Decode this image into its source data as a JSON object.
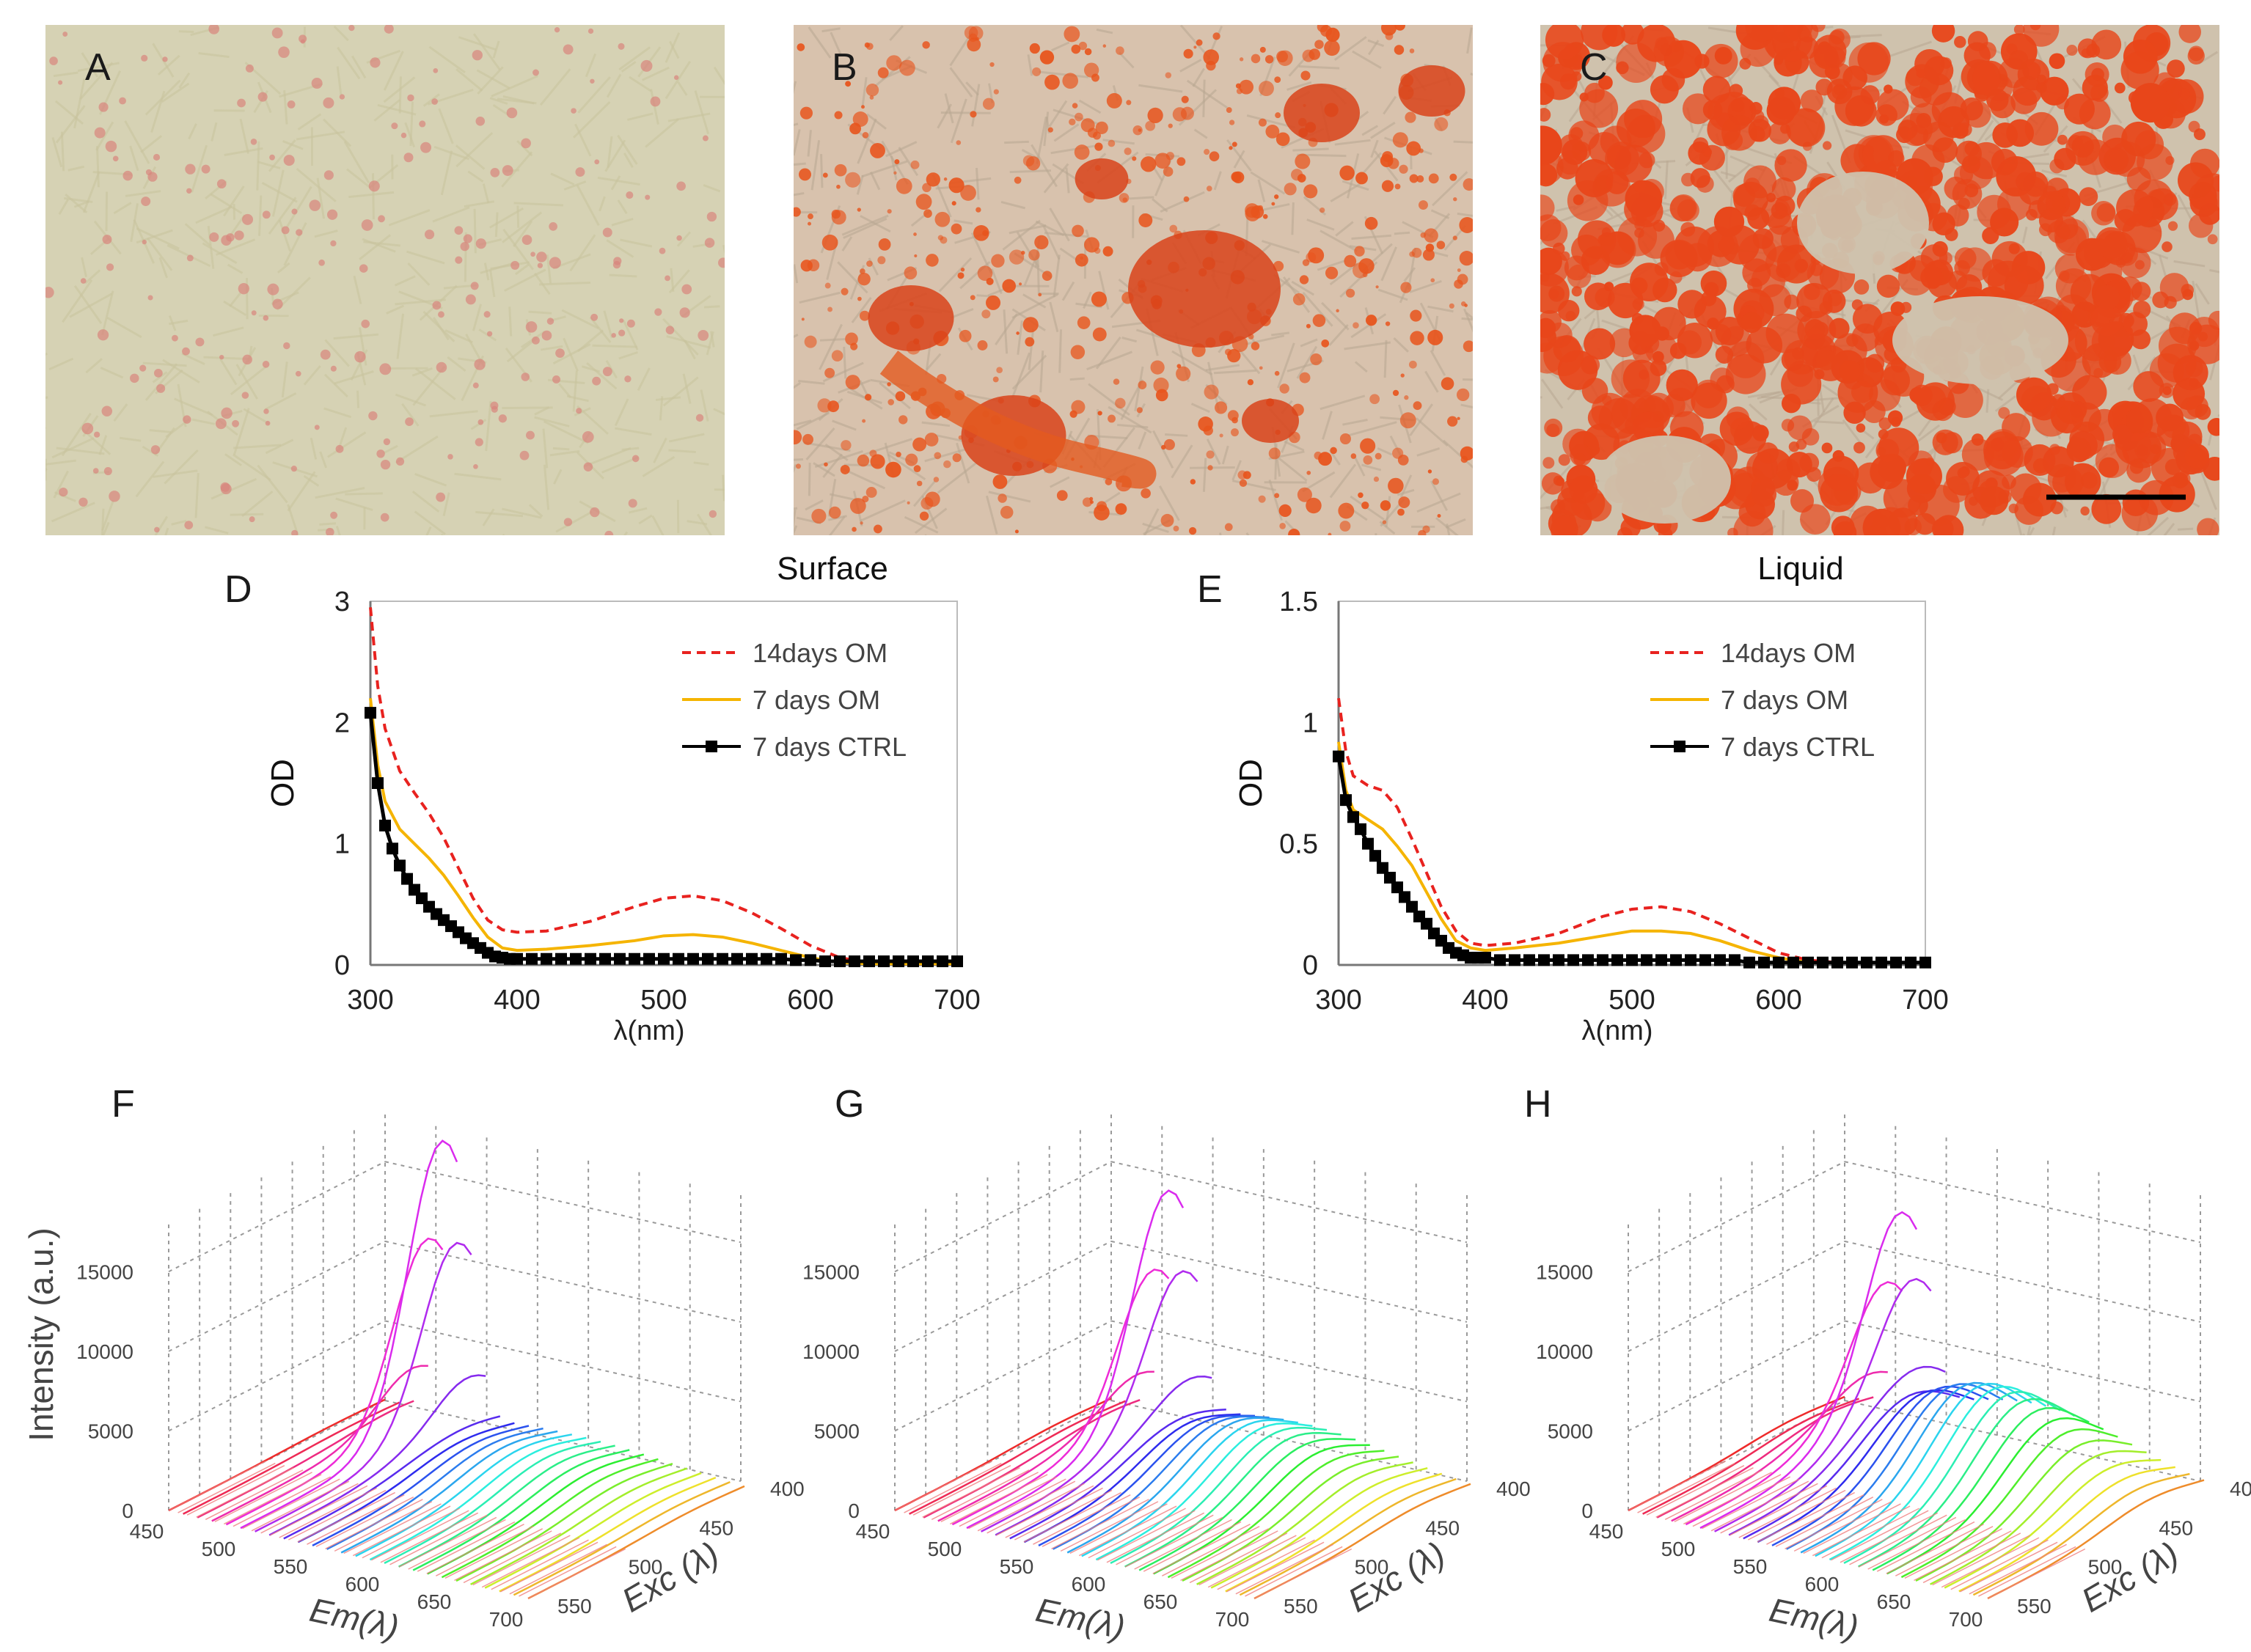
{
  "figure": {
    "panels": {
      "A": "A",
      "B": "B",
      "C": "C",
      "D": "D",
      "E": "E",
      "F": "F",
      "G": "G",
      "H": "H"
    }
  },
  "micrographs": [
    {
      "label": "A",
      "stain_level": "low",
      "background": "#d6d2b4",
      "stain_color": "#d9857c"
    },
    {
      "label": "B",
      "stain_level": "medium",
      "background": "#d8c2ad",
      "stain_color": "#e8541c"
    },
    {
      "label": "C",
      "stain_level": "high",
      "background": "#cfc2ad",
      "stain_color": "#e8461a"
    }
  ],
  "colors": {
    "om14": "#e8221f",
    "om7": "#f5b400",
    "ctrl": "#000000",
    "axis": "#666666"
  },
  "chart_data": [
    {
      "type": "line",
      "panel": "D",
      "title": "Surface",
      "xlabel": "λ(nm)",
      "ylabel": "OD",
      "xlim": [
        300,
        700
      ],
      "ylim": [
        0,
        3
      ],
      "xticks": [
        300,
        400,
        500,
        600,
        700
      ],
      "yticks": [
        0,
        1,
        2,
        3
      ],
      "legend_position": "top-right",
      "series": [
        {
          "name": "14days OM",
          "style": "dashed",
          "color": "#e8221f",
          "x": [
            300,
            305,
            310,
            320,
            330,
            340,
            350,
            360,
            370,
            380,
            390,
            400,
            420,
            450,
            480,
            500,
            520,
            540,
            560,
            580,
            600,
            620,
            640,
            660,
            680,
            700
          ],
          "y": [
            2.95,
            2.3,
            1.95,
            1.6,
            1.42,
            1.25,
            1.05,
            0.8,
            0.55,
            0.37,
            0.29,
            0.27,
            0.28,
            0.36,
            0.48,
            0.55,
            0.57,
            0.53,
            0.43,
            0.3,
            0.16,
            0.06,
            0.02,
            0.01,
            0.01,
            0.01
          ]
        },
        {
          "name": "7 days OM",
          "style": "solid",
          "color": "#f5b400",
          "x": [
            300,
            305,
            310,
            320,
            330,
            340,
            350,
            360,
            370,
            380,
            390,
            400,
            420,
            450,
            480,
            500,
            520,
            540,
            560,
            580,
            600,
            620,
            640,
            660,
            680,
            700
          ],
          "y": [
            2.2,
            1.65,
            1.35,
            1.12,
            1.0,
            0.88,
            0.74,
            0.57,
            0.39,
            0.23,
            0.14,
            0.12,
            0.13,
            0.16,
            0.2,
            0.24,
            0.25,
            0.23,
            0.18,
            0.12,
            0.06,
            0.02,
            0.01,
            0.01,
            0.01,
            0.01
          ]
        },
        {
          "name": "7 days CTRL",
          "style": "solid-square-markers",
          "color": "#000000",
          "x": [
            300,
            305,
            310,
            315,
            320,
            325,
            330,
            335,
            340,
            345,
            350,
            355,
            360,
            365,
            370,
            375,
            380,
            385,
            390,
            395,
            400,
            410,
            420,
            430,
            440,
            450,
            460,
            470,
            480,
            490,
            500,
            510,
            520,
            530,
            540,
            550,
            560,
            570,
            580,
            590,
            600,
            610,
            620,
            630,
            640,
            650,
            660,
            670,
            680,
            690,
            700
          ],
          "y": [
            2.08,
            1.5,
            1.15,
            0.96,
            0.82,
            0.71,
            0.62,
            0.55,
            0.48,
            0.42,
            0.37,
            0.32,
            0.27,
            0.22,
            0.18,
            0.14,
            0.1,
            0.07,
            0.06,
            0.05,
            0.05,
            0.05,
            0.05,
            0.05,
            0.05,
            0.05,
            0.05,
            0.05,
            0.05,
            0.05,
            0.05,
            0.05,
            0.05,
            0.05,
            0.05,
            0.05,
            0.05,
            0.05,
            0.05,
            0.04,
            0.04,
            0.03,
            0.03,
            0.03,
            0.03,
            0.03,
            0.03,
            0.03,
            0.03,
            0.03,
            0.03
          ]
        }
      ]
    },
    {
      "type": "line",
      "panel": "E",
      "title": "Liquid",
      "xlabel": "λ(nm)",
      "ylabel": "OD",
      "xlim": [
        300,
        700
      ],
      "ylim": [
        0,
        1.5
      ],
      "xticks": [
        300,
        400,
        500,
        600,
        700
      ],
      "yticks": [
        0,
        0.5,
        1,
        1.5
      ],
      "legend_position": "top-right",
      "series": [
        {
          "name": "14days OM",
          "style": "dashed",
          "color": "#e8221f",
          "x": [
            300,
            305,
            310,
            320,
            330,
            340,
            350,
            360,
            370,
            380,
            390,
            400,
            420,
            450,
            480,
            500,
            520,
            540,
            560,
            580,
            600,
            620,
            640,
            660,
            680,
            700
          ],
          "y": [
            1.1,
            0.88,
            0.78,
            0.74,
            0.72,
            0.65,
            0.52,
            0.38,
            0.24,
            0.14,
            0.09,
            0.08,
            0.09,
            0.13,
            0.2,
            0.23,
            0.24,
            0.22,
            0.17,
            0.11,
            0.05,
            0.02,
            0.01,
            0.01,
            0.01,
            0.01
          ]
        },
        {
          "name": "7 days OM",
          "style": "solid",
          "color": "#f5b400",
          "x": [
            300,
            305,
            310,
            320,
            330,
            340,
            350,
            360,
            370,
            380,
            390,
            400,
            420,
            450,
            480,
            500,
            520,
            540,
            560,
            580,
            600,
            620,
            640,
            660,
            680,
            700
          ],
          "y": [
            0.92,
            0.72,
            0.64,
            0.6,
            0.56,
            0.49,
            0.41,
            0.3,
            0.19,
            0.1,
            0.07,
            0.06,
            0.07,
            0.09,
            0.12,
            0.14,
            0.14,
            0.13,
            0.1,
            0.06,
            0.03,
            0.01,
            0.01,
            0.01,
            0.01,
            0.01
          ]
        },
        {
          "name": "7 days CTRL",
          "style": "solid-square-markers",
          "color": "#000000",
          "x": [
            300,
            305,
            310,
            315,
            320,
            325,
            330,
            335,
            340,
            345,
            350,
            355,
            360,
            365,
            370,
            375,
            380,
            385,
            390,
            395,
            400,
            410,
            420,
            430,
            440,
            450,
            460,
            470,
            480,
            490,
            500,
            510,
            520,
            530,
            540,
            550,
            560,
            570,
            580,
            590,
            600,
            610,
            620,
            630,
            640,
            650,
            660,
            670,
            680,
            690,
            700
          ],
          "y": [
            0.86,
            0.68,
            0.61,
            0.56,
            0.5,
            0.45,
            0.4,
            0.36,
            0.32,
            0.28,
            0.24,
            0.2,
            0.17,
            0.13,
            0.1,
            0.07,
            0.05,
            0.04,
            0.03,
            0.03,
            0.03,
            0.02,
            0.02,
            0.02,
            0.02,
            0.02,
            0.02,
            0.02,
            0.02,
            0.02,
            0.02,
            0.02,
            0.02,
            0.02,
            0.02,
            0.02,
            0.02,
            0.02,
            0.01,
            0.01,
            0.01,
            0.01,
            0.01,
            0.01,
            0.01,
            0.01,
            0.01,
            0.01,
            0.01,
            0.01,
            0.01
          ]
        }
      ]
    },
    {
      "type": "surface3d",
      "panel": "F",
      "zlabel": "Intensity (a.u.)",
      "xlabel": "Em(λ)",
      "ylabel": "Exc (λ)",
      "xticks": [
        450,
        500,
        550,
        600,
        650,
        700
      ],
      "yticks": [
        400,
        450,
        500,
        550
      ],
      "zticks": [
        0,
        5000,
        10000,
        15000
      ],
      "peak_intensity": 17500,
      "secondary_intensity": 1500
    },
    {
      "type": "surface3d",
      "panel": "G",
      "xlabel": "Em(λ)",
      "ylabel": "Exc (λ)",
      "xticks": [
        450,
        500,
        550,
        600,
        650,
        700
      ],
      "yticks": [
        400,
        450,
        500,
        550
      ],
      "zticks": [
        0,
        5000,
        10000,
        15000
      ],
      "peak_intensity": 14000,
      "secondary_intensity": 3000
    },
    {
      "type": "surface3d",
      "panel": "H",
      "xlabel": "Em(λ)",
      "ylabel": "Exc (λ)",
      "xticks": [
        450,
        500,
        550,
        600,
        650,
        700
      ],
      "yticks": [
        400,
        450,
        500,
        550
      ],
      "zticks": [
        0,
        5000,
        10000,
        15000
      ],
      "peak_intensity": 12000,
      "secondary_intensity": 5500
    }
  ]
}
